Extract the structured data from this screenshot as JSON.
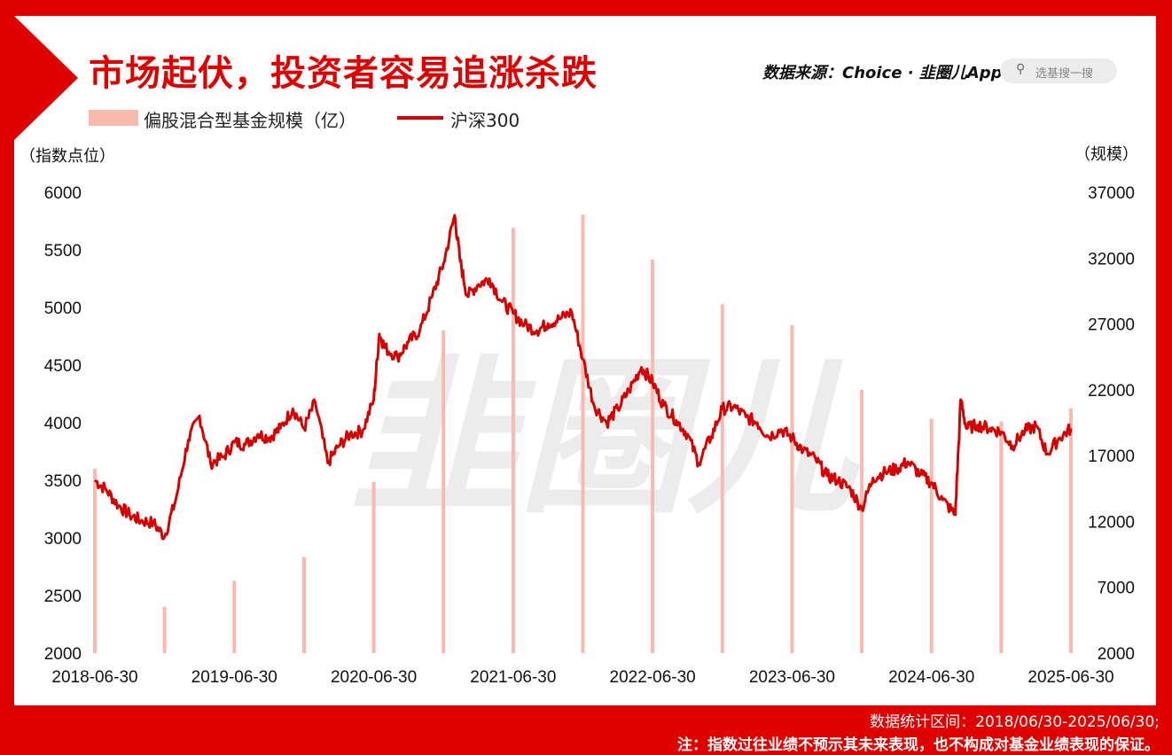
{
  "header": {
    "title": "市场起伏，投资者容易追涨杀跌",
    "source": "数据来源：Choice · 韭圈儿App",
    "search_placeholder": "选基搜一搜"
  },
  "colors": {
    "frame": "#e00000",
    "bar": "#f9b9ad",
    "line": "#d60000"
  },
  "footer": {
    "range": "数据统计区间：2018/06/30-2025/06/30;",
    "note": "注：指数过往业绩不预示其未来表现，也不构成对基金业绩表现的保证。"
  },
  "chart_data": {
    "type": "bar+line",
    "legend": [
      "偏股混合型基金规模（亿）",
      "沪深300"
    ],
    "left_axis_label": "（指数点位）",
    "right_axis_label": "（规模）",
    "left_ylim": [
      2000,
      6000
    ],
    "right_ylim": [
      2000,
      37000
    ],
    "left_ticks": [
      "6000",
      "5500",
      "5000",
      "4500",
      "4000",
      "3500",
      "3000",
      "2500",
      "2000"
    ],
    "right_ticks": [
      "37000",
      "32000",
      "27000",
      "22000",
      "17000",
      "12000",
      "7000",
      "2000"
    ],
    "x_ticks": [
      "2018-06-30",
      "2019-06-30",
      "2020-06-30",
      "2021-06-30",
      "2022-06-30",
      "2023-06-30",
      "2024-06-30",
      "2025-06-30"
    ],
    "bars": {
      "name": "偏股混合型基金规模（亿）",
      "dates": [
        2018.5,
        2019.0,
        2019.5,
        2020.0,
        2020.5,
        2021.0,
        2021.5,
        2022.0,
        2022.5,
        2023.0,
        2023.5,
        2024.0,
        2024.5,
        2025.0,
        2025.5
      ],
      "values": [
        16000,
        5500,
        7500,
        9300,
        15000,
        26500,
        34300,
        35300,
        31900,
        28500,
        26900,
        22000,
        19800,
        19600,
        20600
      ]
    },
    "line": {
      "name": "沪深300",
      "dates": [
        2018.5,
        2018.58,
        2018.67,
        2018.75,
        2018.83,
        2018.92,
        2019.0,
        2019.08,
        2019.17,
        2019.25,
        2019.33,
        2019.42,
        2019.5,
        2019.58,
        2019.67,
        2019.75,
        2019.83,
        2019.92,
        2020.0,
        2020.08,
        2020.17,
        2020.25,
        2020.33,
        2020.42,
        2020.5,
        2020.54,
        2020.58,
        2020.67,
        2020.75,
        2020.83,
        2020.92,
        2021.0,
        2021.08,
        2021.12,
        2021.17,
        2021.25,
        2021.33,
        2021.42,
        2021.5,
        2021.58,
        2021.67,
        2021.75,
        2021.83,
        2021.92,
        2022.0,
        2022.08,
        2022.17,
        2022.25,
        2022.33,
        2022.42,
        2022.5,
        2022.58,
        2022.67,
        2022.75,
        2022.83,
        2022.92,
        2023.0,
        2023.08,
        2023.17,
        2023.25,
        2023.33,
        2023.42,
        2023.5,
        2023.58,
        2023.67,
        2023.75,
        2023.83,
        2023.92,
        2024.0,
        2024.08,
        2024.17,
        2024.25,
        2024.33,
        2024.42,
        2024.5,
        2024.58,
        2024.67,
        2024.71,
        2024.75,
        2024.83,
        2024.92,
        2025.0,
        2025.08,
        2025.17,
        2025.25,
        2025.33,
        2025.42,
        2025.5
      ],
      "values": [
        3500,
        3420,
        3280,
        3200,
        3150,
        3130,
        3010,
        3330,
        3850,
        4060,
        3650,
        3700,
        3830,
        3810,
        3900,
        3870,
        3950,
        4120,
        3950,
        4180,
        3650,
        3800,
        3900,
        3930,
        4200,
        4770,
        4650,
        4570,
        4700,
        4800,
        5100,
        5380,
        5800,
        5400,
        5100,
        5200,
        5250,
        5050,
        4950,
        4850,
        4800,
        4860,
        4900,
        4960,
        4550,
        4150,
        4000,
        4120,
        4280,
        4480,
        4350,
        4150,
        4020,
        3900,
        3650,
        3880,
        4120,
        4140,
        4050,
        4000,
        3880,
        3940,
        3870,
        3760,
        3680,
        3540,
        3500,
        3420,
        3250,
        3520,
        3570,
        3600,
        3660,
        3550,
        3480,
        3330,
        3200,
        4200,
        3950,
        3980,
        3950,
        3920,
        3800,
        3930,
        3970,
        3730,
        3870,
        3950
      ]
    }
  }
}
